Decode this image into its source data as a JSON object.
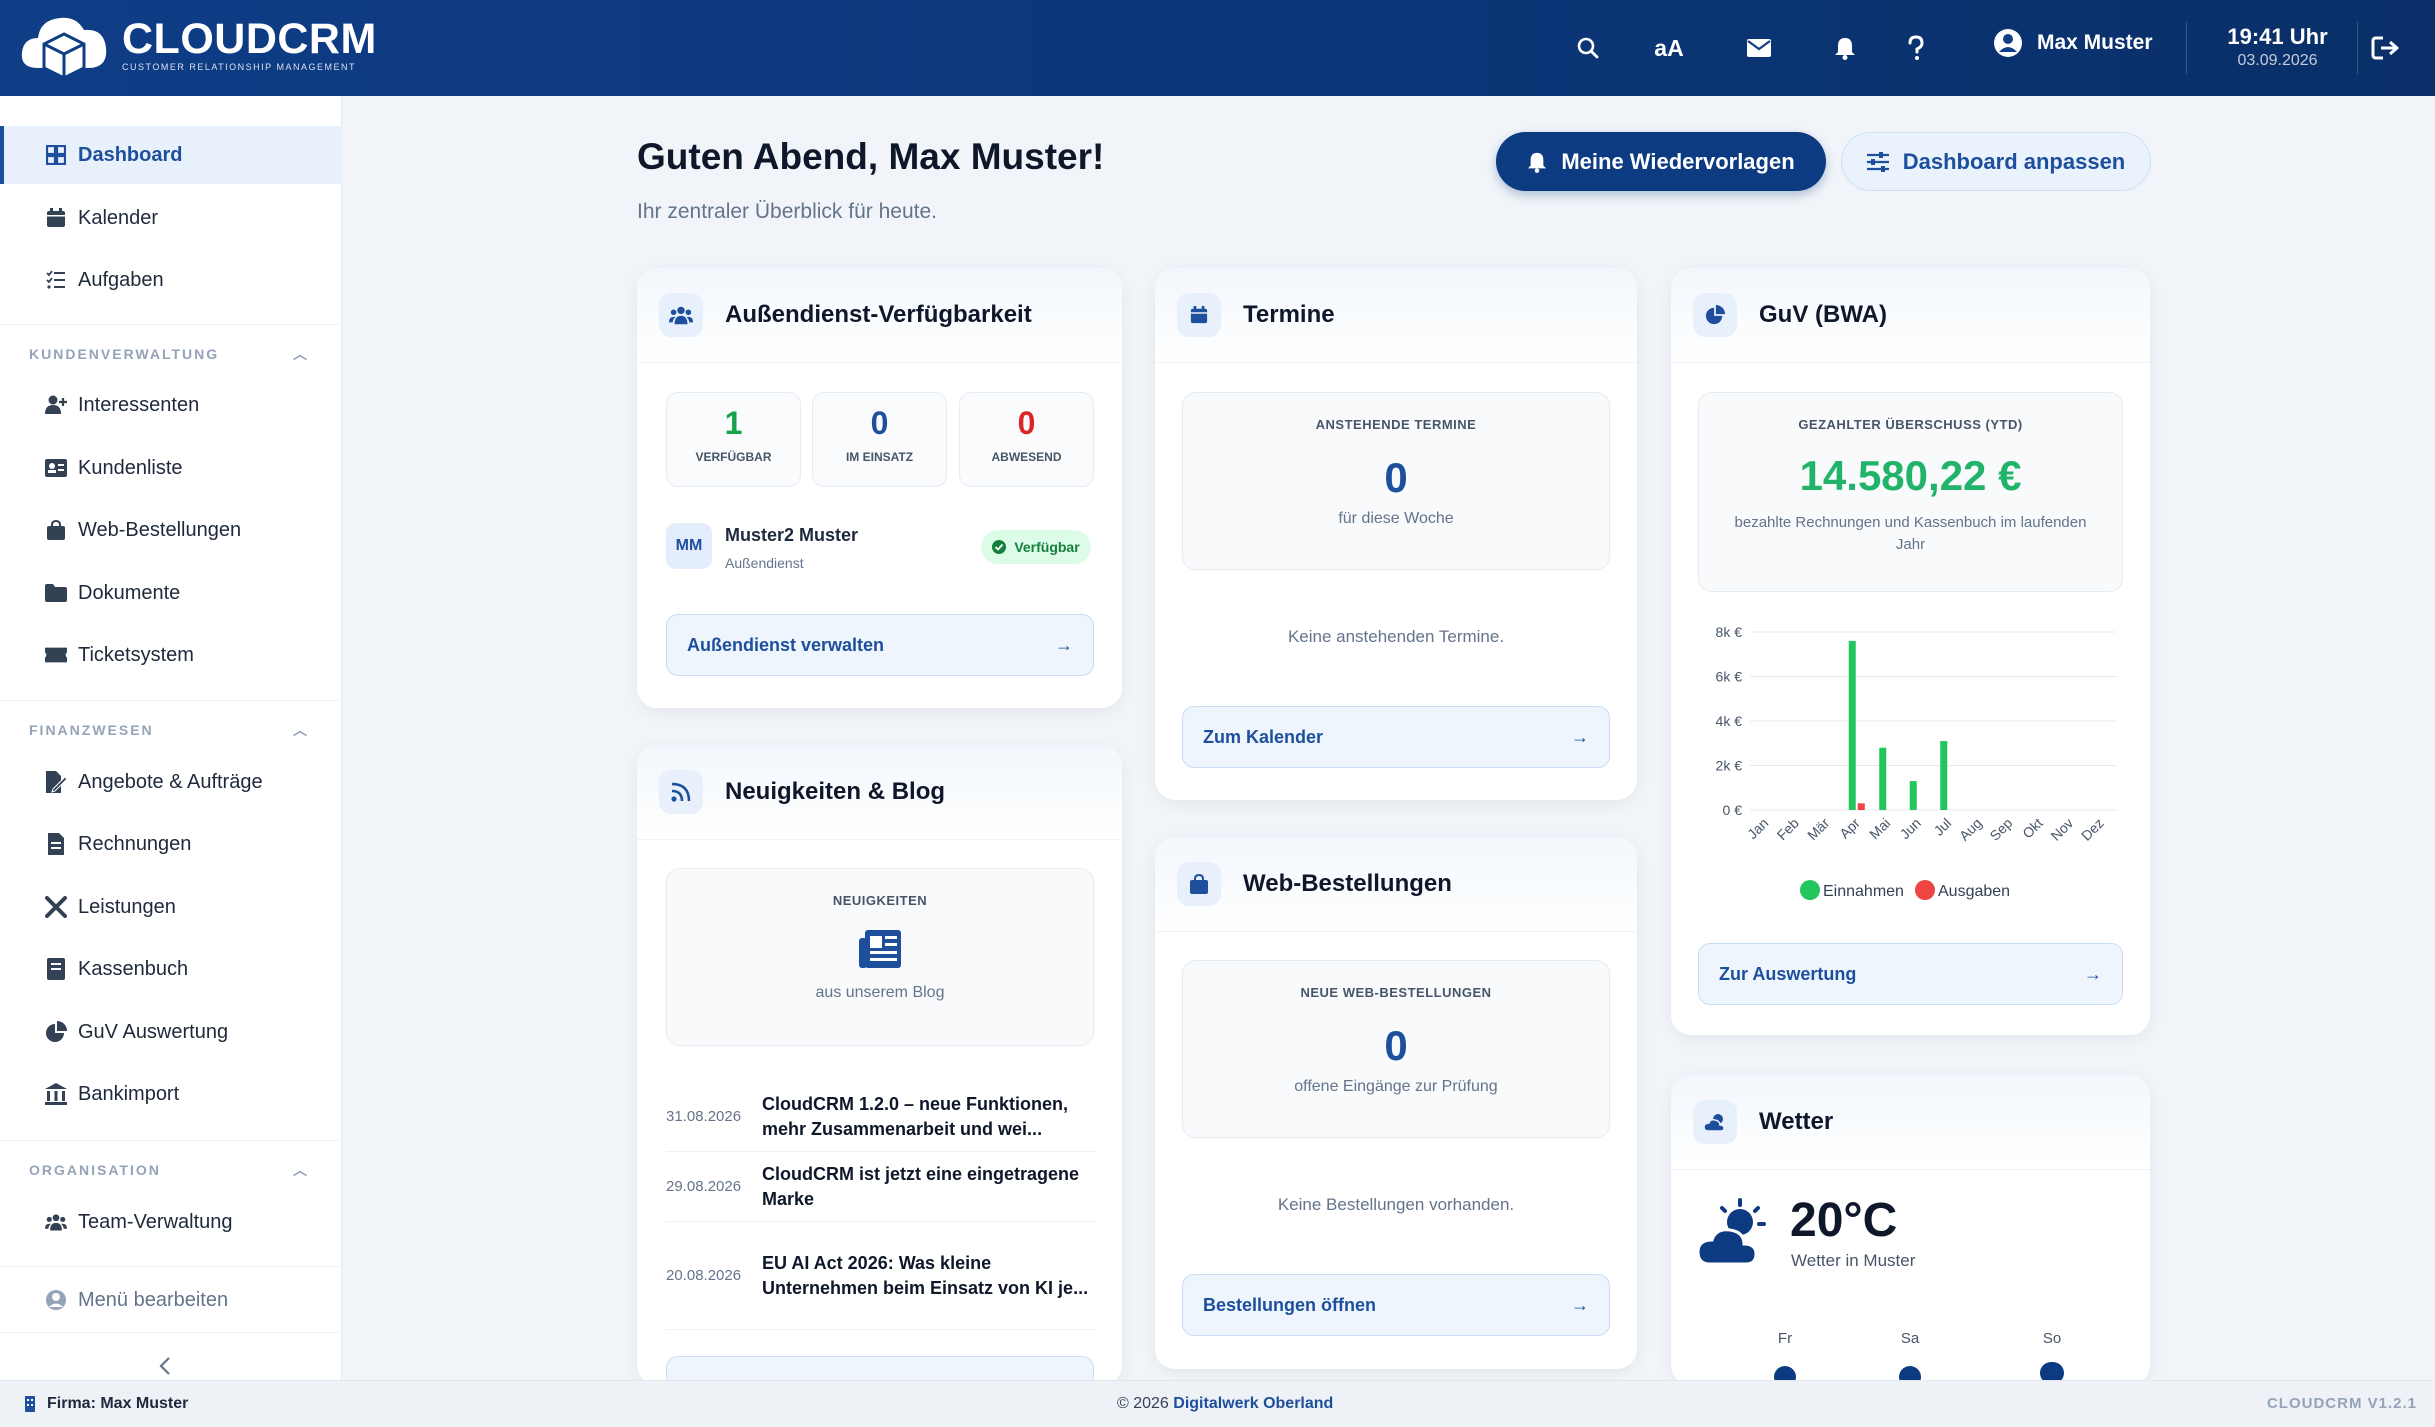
{
  "header": {
    "app_title": "CLOUDCRM",
    "app_subtitle": "CUSTOMER RELATIONSHIP MANAGEMENT",
    "font_size_label": "aA",
    "user_name": "Max Muster",
    "time": "19:41 Uhr",
    "date": "03.09.2026"
  },
  "sidebar": {
    "items": [
      {
        "label": "Dashboard",
        "icon": "dashboard-icon"
      },
      {
        "label": "Kalender",
        "icon": "calendar-icon"
      },
      {
        "label": "Aufgaben",
        "icon": "tasks-icon"
      }
    ],
    "sections": [
      {
        "title": "KUNDENVERWALTUNG",
        "items": [
          {
            "label": "Interessenten",
            "icon": "user-plus-icon"
          },
          {
            "label": "Kundenliste",
            "icon": "id-card-icon"
          },
          {
            "label": "Web-Bestellungen",
            "icon": "shopping-bag-icon"
          },
          {
            "label": "Dokumente",
            "icon": "folder-icon"
          },
          {
            "label": "Ticketsystem",
            "icon": "ticket-icon"
          }
        ]
      },
      {
        "title": "FINANZWESEN",
        "items": [
          {
            "label": "Angebote & Aufträge",
            "icon": "file-signature-icon"
          },
          {
            "label": "Rechnungen",
            "icon": "invoice-icon"
          },
          {
            "label": "Leistungen",
            "icon": "tools-icon"
          },
          {
            "label": "Kassenbuch",
            "icon": "book-icon"
          },
          {
            "label": "GuV Auswertung",
            "icon": "pie-chart-icon"
          },
          {
            "label": "Bankimport",
            "icon": "bank-icon"
          }
        ]
      },
      {
        "title": "ORGANISATION",
        "items": [
          {
            "label": "Team-Verwaltung",
            "icon": "team-icon"
          }
        ]
      }
    ],
    "edit_menu": "Menü bearbeiten"
  },
  "main": {
    "greeting": "Guten Abend, Max Muster!",
    "subtitle": "Ihr zentraler Überblick für heute.",
    "btn_followups": "Meine Wiedervorlagen",
    "btn_customize": "Dashboard anpassen"
  },
  "field_service": {
    "title": "Außendienst-Verfügbarkeit",
    "stats": [
      {
        "value": "1",
        "label": "VERFÜGBAR",
        "color": "#16a34a"
      },
      {
        "value": "0",
        "label": "IM EINSATZ",
        "color": "#1d4f9c"
      },
      {
        "value": "0",
        "label": "ABWESEND",
        "color": "#dc2626"
      }
    ],
    "employee": {
      "initials": "MM",
      "name": "Muster2 Muster",
      "role": "Außendienst",
      "status": "Verfügbar"
    },
    "link": "Außendienst verwalten"
  },
  "news": {
    "title": "Neuigkeiten & Blog",
    "box_caption": "NEUIGKEITEN",
    "box_text": "aus unserem Blog",
    "items": [
      {
        "date": "31.08.2026",
        "title": "CloudCRM 1.2.0 – neue Funktionen, mehr Zusammenarbeit und wei..."
      },
      {
        "date": "29.08.2026",
        "title": "CloudCRM ist jetzt eine eingetragene Marke"
      },
      {
        "date": "20.08.2026",
        "title": "EU AI Act 2026: Was kleine Unternehmen beim Einsatz von KI je..."
      }
    ]
  },
  "appointments": {
    "title": "Termine",
    "caption": "ANSTEHENDE TERMINE",
    "count": "0",
    "count_label": "für diese Woche",
    "empty": "Keine anstehenden Termine.",
    "link": "Zum Kalender"
  },
  "orders": {
    "title": "Web-Bestellungen",
    "caption": "NEUE WEB-BESTELLUNGEN",
    "count": "0",
    "count_label": "offene Eingänge zur Prüfung",
    "empty": "Keine Bestellungen vorhanden.",
    "link": "Bestellungen öffnen"
  },
  "pnl": {
    "title": "GuV (BWA)",
    "caption": "GEZAHLTER ÜBERSCHUSS (YTD)",
    "amount": "14.580,22 €",
    "desc": "bezahlte Rechnungen und Kassenbuch im laufenden Jahr",
    "link": "Zur Auswertung"
  },
  "chart_data": {
    "type": "bar",
    "categories": [
      "Jan",
      "Feb",
      "Mär",
      "Apr",
      "Mai",
      "Jun",
      "Jul",
      "Aug",
      "Sep",
      "Okt",
      "Nov",
      "Dez"
    ],
    "series": [
      {
        "name": "Einnahmen",
        "color": "#22c55e",
        "values": [
          0,
          0,
          0,
          7600,
          2800,
          1300,
          3100,
          0,
          0,
          0,
          0,
          0
        ]
      },
      {
        "name": "Ausgaben",
        "color": "#ef4444",
        "values": [
          0,
          0,
          0,
          300,
          0,
          0,
          0,
          0,
          0,
          0,
          0,
          0
        ]
      }
    ],
    "yticks": [
      "0 €",
      "2k €",
      "4k €",
      "6k €",
      "8k €"
    ],
    "ylim": [
      0,
      8000
    ],
    "legend": "bottom",
    "grid": true
  },
  "weather": {
    "title": "Wetter",
    "temp": "20°C",
    "location": "Wetter in Muster",
    "days": [
      "Fr",
      "Sa",
      "So"
    ]
  },
  "footer": {
    "company": "Firma: Max Muster",
    "copyright": "© 2026",
    "company_link": "Digitalwerk Oberland",
    "version": "CLOUDCRM V1.2.1"
  }
}
